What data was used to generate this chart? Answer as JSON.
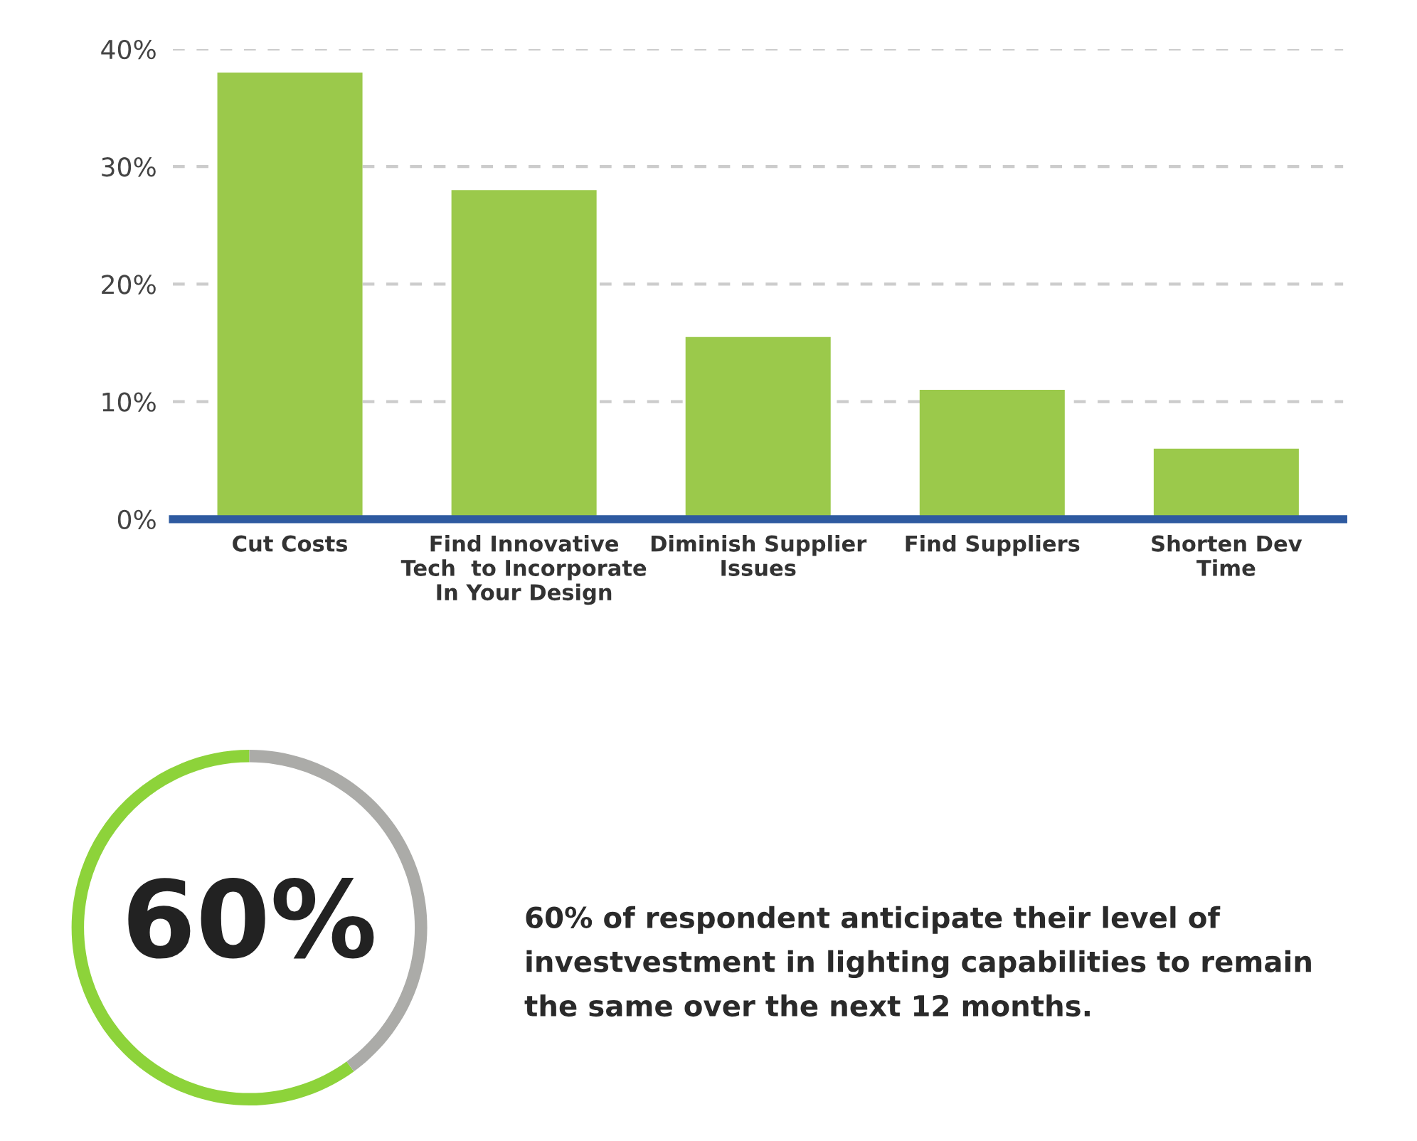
{
  "chart_data": [
    {
      "type": "bar",
      "categories": [
        "Cut Costs",
        "Find Innovative\nTech  to Incorporate\nIn Your Design",
        "Diminish Supplier\nIssues",
        "Find Suppliers",
        "Shorten Dev\nTime"
      ],
      "values": [
        38,
        28,
        15.5,
        11,
        6
      ],
      "color": "#9bc94b",
      "ylim": [
        0,
        40
      ],
      "yticks": [
        {
          "value": 0,
          "label": "0%"
        },
        {
          "value": 10,
          "label": "10%"
        },
        {
          "value": 20,
          "label": "20%"
        },
        {
          "value": 30,
          "label": "30%"
        },
        {
          "value": 40,
          "label": "40%"
        }
      ],
      "grid": "y"
    },
    {
      "type": "donut",
      "categories": [
        null,
        null
      ],
      "values": [
        60,
        40
      ],
      "colors": [
        "#8dd33a",
        "#ababa8"
      ],
      "annotations": [
        "60%",
        "60% of respondent anticipate their level of\ninvestvestment in lighting capabilities to remain\nthe same over the next 12 months."
      ]
    }
  ]
}
